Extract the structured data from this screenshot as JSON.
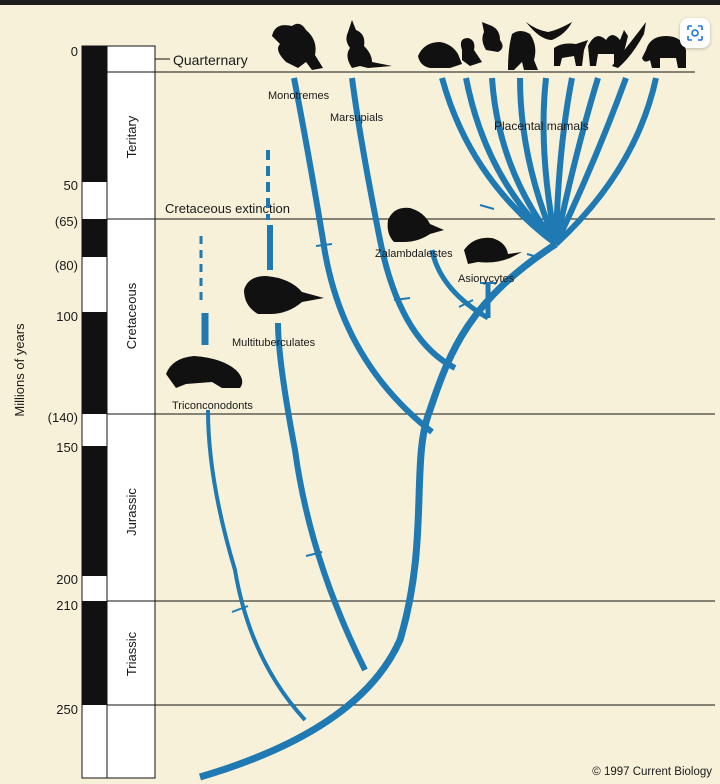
{
  "axis": {
    "label": "Millions of years"
  },
  "ticks": [
    "0",
    "50",
    "(65)",
    "(80)",
    "100",
    "(140)",
    "150",
    "200",
    "210",
    "250"
  ],
  "periods": [
    "Teritary",
    "Cretaceous",
    "Jurassic",
    "Triassic"
  ],
  "boundaries": {
    "quaternary": "Quarternary",
    "extinction": "Cretaceous extinction"
  },
  "lineages": {
    "monotremes": "Monotremes",
    "marsupials": "Marsupials",
    "placentals": "Placental mamals",
    "zalambdalestes": "Zalambdalestes",
    "asiorycytes": "Asiorycytes",
    "multituberculates": "Multituberculates",
    "triconodonts": "Triconconodonts"
  },
  "colors": {
    "branch": "#1f7ab3",
    "background": "#f7f1d9",
    "bar": "#111111"
  },
  "copyright": "© 1997 Current Biology",
  "toolbar": {
    "lens_icon": "lens-search-icon"
  }
}
